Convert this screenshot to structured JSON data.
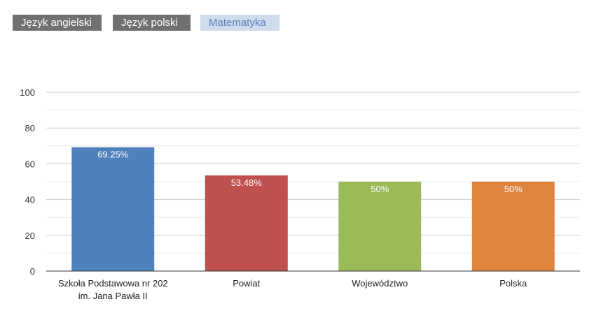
{
  "tabs": [
    {
      "label": "Język angielski",
      "active": false
    },
    {
      "label": "Język polski",
      "active": false
    },
    {
      "label": "Matematyka",
      "active": true
    }
  ],
  "colors": {
    "tab_inactive_bg": "#707070",
    "tab_active_bg": "#cfdcee",
    "tab_active_text": "#5b7fb8",
    "grid": "#cccccc"
  },
  "chart_data": {
    "type": "bar",
    "categories": [
      [
        "Szkoła Podstawowa nr 202",
        "im. Jana Pawła II"
      ],
      [
        "Powiat"
      ],
      [
        "Województwo"
      ],
      [
        "Polska"
      ]
    ],
    "values": [
      69.25,
      53.48,
      50,
      50
    ],
    "data_labels": [
      "69.25%",
      "53.48%",
      "50%",
      "50%"
    ],
    "bar_colors": [
      "#4f81bd",
      "#c0504d",
      "#9bbb59",
      "#dd843f"
    ],
    "ylim": [
      0,
      100
    ],
    "yticks": [
      0,
      20,
      40,
      60,
      80,
      100
    ],
    "grid": true
  }
}
